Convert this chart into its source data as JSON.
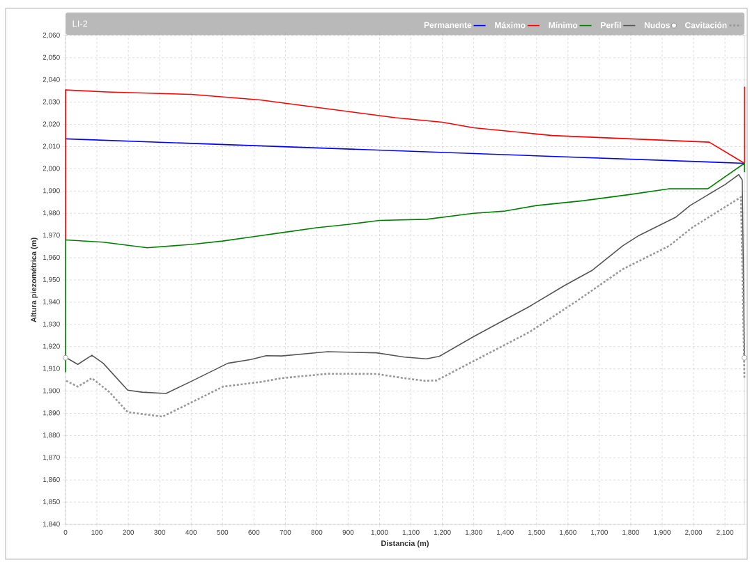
{
  "chart_data": {
    "type": "line",
    "title": "LI-2",
    "xlabel": "Distancia (m)",
    "ylabel": "Altura piezométrica (m)",
    "xlim": [
      0,
      2162
    ],
    "ylim": [
      1840,
      2060
    ],
    "xticks": [
      0,
      100,
      200,
      300,
      400,
      500,
      600,
      700,
      800,
      900,
      {
        "value": 1000,
        "label": "1,000"
      },
      {
        "value": 1100,
        "label": "1,100"
      },
      {
        "value": 1200,
        "label": "1,200"
      },
      {
        "value": 1300,
        "label": "1,300"
      },
      {
        "value": 1400,
        "label": "1,400"
      },
      {
        "value": 1500,
        "label": "1,500"
      },
      {
        "value": 1600,
        "label": "1,600"
      },
      {
        "value": 1700,
        "label": "1,700"
      },
      {
        "value": 1800,
        "label": "1,800"
      },
      {
        "value": 1900,
        "label": "1,900"
      },
      {
        "value": 2000,
        "label": "2,000"
      },
      {
        "value": 2100,
        "label": "2,100"
      }
    ],
    "yticks": [
      {
        "value": 1840,
        "label": "1,840"
      },
      {
        "value": 1850,
        "label": "1,850"
      },
      {
        "value": 1860,
        "label": "1,860"
      },
      {
        "value": 1870,
        "label": "1,870"
      },
      {
        "value": 1880,
        "label": "1,880"
      },
      {
        "value": 1890,
        "label": "1,890"
      },
      {
        "value": 1900,
        "label": "1,900"
      },
      {
        "value": 1910,
        "label": "1,910"
      },
      {
        "value": 1920,
        "label": "1,920"
      },
      {
        "value": 1930,
        "label": "1,930"
      },
      {
        "value": 1940,
        "label": "1,940"
      },
      {
        "value": 1950,
        "label": "1,950"
      },
      {
        "value": 1960,
        "label": "1,960"
      },
      {
        "value": 1970,
        "label": "1,970"
      },
      {
        "value": 1980,
        "label": "1,980"
      },
      {
        "value": 1990,
        "label": "1,990"
      },
      {
        "value": 2000,
        "label": "2,000"
      },
      {
        "value": 2010,
        "label": "2,010"
      },
      {
        "value": 2020,
        "label": "2,020"
      },
      {
        "value": 2030,
        "label": "2,030"
      },
      {
        "value": 2040,
        "label": "2,040"
      },
      {
        "value": 2050,
        "label": "2,050"
      },
      {
        "value": 2060,
        "label": "2,060"
      }
    ],
    "grid": true,
    "legend": "top right",
    "marker": "none",
    "line_style": "solid",
    "series": [
      {
        "name": "Permanente",
        "color": "#0000ff",
        "x": [
          0,
          2162
        ],
        "values": [
          2013.5,
          2002.5
        ]
      },
      {
        "name": "Máximo",
        "color": "#ff0000",
        "x": [
          0,
          0,
          130,
          400,
          620,
          1050,
          1200,
          1300,
          1550,
          2050,
          2162,
          2162
        ],
        "values": [
          1968,
          2035.5,
          2034.6,
          2033.5,
          2031,
          2023,
          2021,
          2018.5,
          2015,
          2012,
          2002.5,
          2037
        ]
      },
      {
        "name": "Mínimo",
        "color": "#008000",
        "x": [
          0,
          0,
          120,
          260,
          400,
          500,
          600,
          700,
          800,
          900,
          1000,
          1150,
          1300,
          1400,
          1500,
          1650,
          1800,
          1920,
          2045,
          2162,
          2162
        ],
        "values": [
          1908.5,
          1968,
          1967,
          1964.5,
          1966,
          1967.5,
          1969.5,
          1971.5,
          1973.5,
          1975,
          1976.8,
          1977.3,
          1980,
          1981,
          1983.5,
          1985.7,
          1988.5,
          1991,
          1991,
          2002.5,
          1998.5
        ]
      },
      {
        "name": "Perfil",
        "color": "#555555",
        "x": [
          0,
          39,
          84,
          120,
          198,
          243,
          320,
          398,
          517,
          590,
          639,
          688,
          835,
          990,
          1079,
          1149,
          1190,
          1301,
          1382,
          1478,
          1589,
          1678,
          1774,
          1826,
          1944,
          1989,
          2100,
          2144,
          2155,
          2162
        ],
        "values": [
          1915.2,
          1912,
          1916.1,
          1912.5,
          1900.4,
          1899.5,
          1898.9,
          1904.2,
          1912.5,
          1914.2,
          1915.9,
          1915.8,
          1917.7,
          1917.2,
          1915.3,
          1914.5,
          1915.6,
          1924.6,
          1930.8,
          1938.1,
          1947.5,
          1954.4,
          1965.3,
          1970,
          1978.3,
          1983.5,
          1992.9,
          1997.4,
          1995,
          1915
        ]
      },
      {
        "name": "Nudos",
        "type": "scatter",
        "marker": "circle",
        "color": "#ffffff",
        "x": [
          0,
          2162
        ],
        "values": [
          1915,
          1915
        ]
      },
      {
        "name": "Cavitación",
        "color": "#999999",
        "line_style": "dotted",
        "x": [
          2,
          39,
          84,
          140,
          198,
          309,
          384,
          502,
          627,
          688,
          835,
          990,
          1079,
          1145,
          1182,
          1293,
          1478,
          1626,
          1774,
          1922,
          1996,
          2151,
          2162
        ],
        "values": [
          1904.6,
          1902,
          1905.8,
          1899.5,
          1890.5,
          1888.5,
          1893.7,
          1902,
          1904.2,
          1905.8,
          1907.8,
          1907.7,
          1905.8,
          1904.6,
          1904.8,
          1913,
          1926.6,
          1940.3,
          1954.8,
          1965.3,
          1973.6,
          1987.3,
          1906
        ]
      }
    ]
  }
}
